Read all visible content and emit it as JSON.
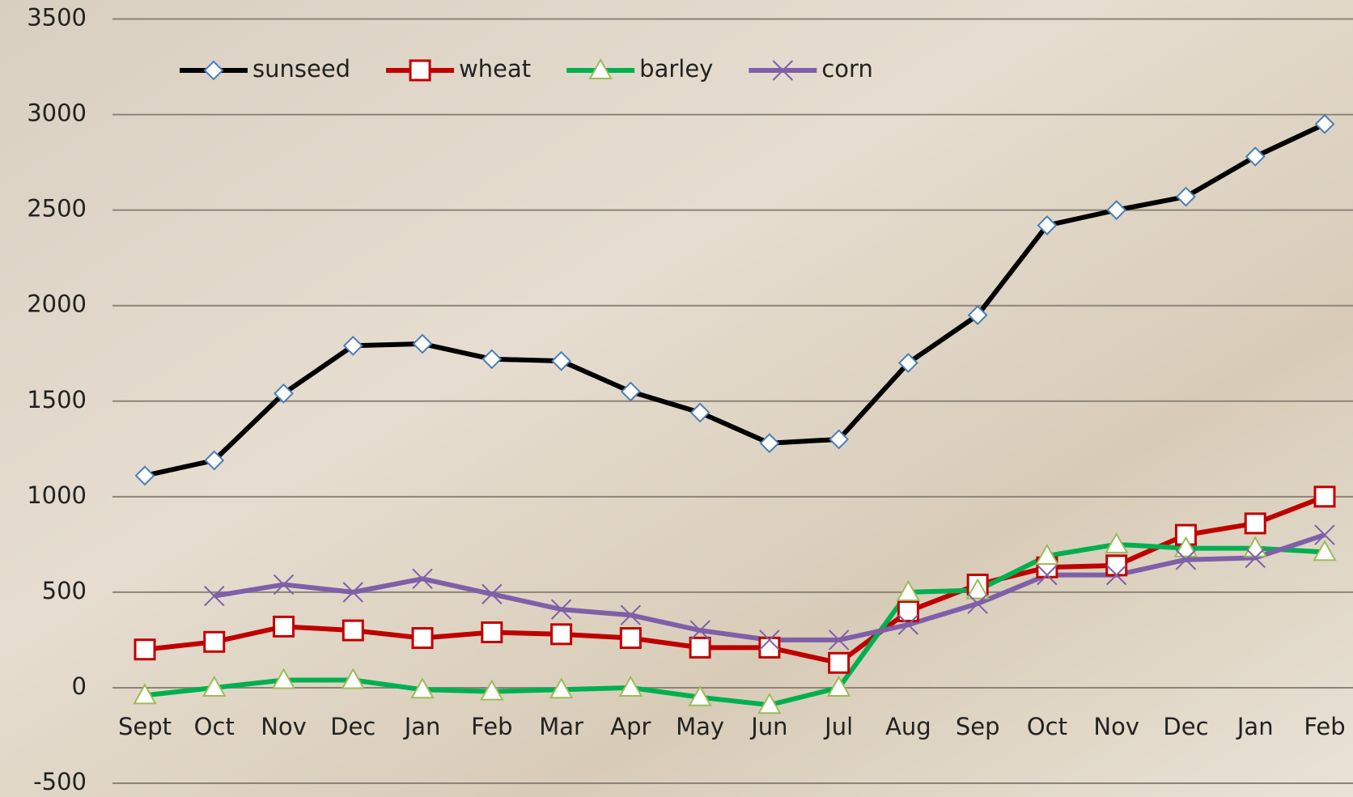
{
  "chart_data": {
    "type": "line",
    "categories": [
      "Sept",
      "Oct",
      "Nov",
      "Dec",
      "Jan",
      "Feb",
      "Mar",
      "Apr",
      "May",
      "Jun",
      "Jul",
      "Aug",
      "Sep",
      "Oct",
      "Nov",
      "Dec",
      "Jan",
      "Feb"
    ],
    "series": [
      {
        "name": "sunseed",
        "color": "#000000",
        "marker": "diamond",
        "marker_color": "#4a7ebb",
        "values": [
          1110,
          1190,
          1540,
          1790,
          1800,
          1720,
          1710,
          1550,
          1440,
          1280,
          1300,
          1700,
          1950,
          2420,
          2500,
          2570,
          2780,
          2950
        ]
      },
      {
        "name": "wheat",
        "color": "#c00000",
        "marker": "square",
        "marker_color": "#c00000",
        "values": [
          200,
          240,
          320,
          300,
          260,
          290,
          280,
          260,
          210,
          210,
          130,
          400,
          540,
          630,
          640,
          800,
          860,
          1000
        ]
      },
      {
        "name": "barley",
        "color": "#00b050",
        "marker": "triangle",
        "marker_color": "#9bbb59",
        "values": [
          -40,
          0,
          40,
          40,
          -10,
          -20,
          -10,
          0,
          -50,
          -90,
          0,
          500,
          510,
          690,
          750,
          730,
          730,
          710
        ]
      },
      {
        "name": "corn",
        "color": "#7f5fa8",
        "marker": "x",
        "marker_color": "#7f5fa8",
        "values": [
          null,
          480,
          540,
          500,
          570,
          490,
          410,
          380,
          300,
          250,
          250,
          330,
          440,
          590,
          590,
          670,
          680,
          800
        ]
      }
    ],
    "ylim": [
      -500,
      3500
    ],
    "yticks": [
      -500,
      0,
      500,
      1000,
      1500,
      2000,
      2500,
      3000,
      3500
    ],
    "grid": true
  }
}
